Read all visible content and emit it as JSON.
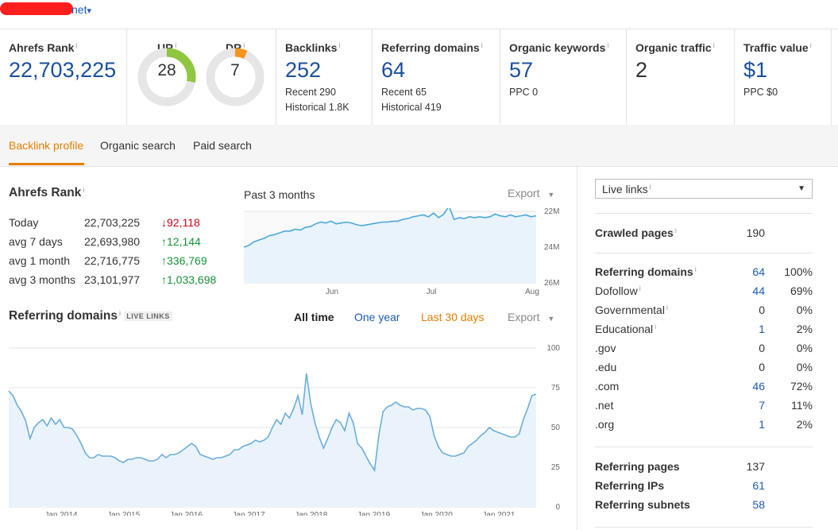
{
  "header": {
    "domain": "net",
    "domain_caret": "▾"
  },
  "metrics": {
    "ahrefs_rank": {
      "label": "Ahrefs Rank",
      "value": "22,703,225"
    },
    "ur": {
      "label": "UR",
      "value": "28",
      "fraction": 0.28,
      "color": "#8dc63f"
    },
    "dr": {
      "label": "DR",
      "value": "7",
      "fraction": 0.07,
      "color": "#f7941d"
    },
    "backlinks": {
      "label": "Backlinks",
      "value": "252",
      "recent": "Recent 290",
      "historical": "Historical 1.8K"
    },
    "referring_domains": {
      "label": "Referring domains",
      "value": "64",
      "recent": "Recent 65",
      "historical": "Historical 419"
    },
    "organic_keywords": {
      "label": "Organic keywords",
      "value": "57",
      "ppc": "PPC 0"
    },
    "organic_traffic": {
      "label": "Organic traffic",
      "value": "2"
    },
    "traffic_value": {
      "label": "Traffic value",
      "value": "$1",
      "ppc": "PPC $0"
    },
    "info_mark": "i"
  },
  "tabs": [
    {
      "label": "Backlink profile",
      "active": true
    },
    {
      "label": "Organic search",
      "active": false
    },
    {
      "label": "Paid search",
      "active": false
    }
  ],
  "rank_section": {
    "title": "Ahrefs Rank",
    "period_label": "Past 3 months",
    "export_label": "Export",
    "rows": [
      {
        "label": "Today",
        "value": "22,703,225",
        "change": "92,118",
        "arrow": "↓",
        "dir": "down"
      },
      {
        "label": "avg 7 days",
        "value": "22,693,980",
        "change": "12,144",
        "arrow": "↑",
        "dir": "up"
      },
      {
        "label": "avg 1 month",
        "value": "22,716,775",
        "change": "336,769",
        "arrow": "↑",
        "dir": "up"
      },
      {
        "label": "avg 3 months",
        "value": "23,101,977",
        "change": "1,033,698",
        "arrow": "↑",
        "dir": "up"
      }
    ]
  },
  "refdomains_section": {
    "title": "Referring domains",
    "badge": "LIVE LINKS",
    "ranges": [
      {
        "label": "All time",
        "state": "selected"
      },
      {
        "label": "One year",
        "state": "link"
      },
      {
        "label": "Last 30 days",
        "state": "highlight"
      }
    ],
    "export_label": "Export"
  },
  "chart_data": [
    {
      "type": "area",
      "title": "Ahrefs Rank",
      "x_ticks": [
        "Jun",
        "Jul",
        "Aug"
      ],
      "y_ticks": [
        "22M",
        "24M",
        "26M"
      ],
      "ylim": [
        26,
        22
      ],
      "y_reversed": true,
      "color": "#4aa8de",
      "series": [
        {
          "values": [
            24.0,
            23.9,
            23.7,
            23.6,
            23.5,
            23.35,
            23.3,
            23.2,
            23.1,
            23.1,
            23.0,
            23.05,
            22.9,
            22.85,
            22.7,
            22.6,
            22.65,
            22.55,
            22.7,
            22.65,
            22.6,
            22.65,
            22.75,
            22.8,
            22.75,
            22.7,
            22.65,
            22.6,
            22.6,
            22.55,
            22.55,
            22.45,
            22.4,
            22.3,
            22.25,
            22.2,
            22.3,
            22.1,
            22.35,
            22.15,
            21.7,
            22.45,
            22.35,
            22.4,
            22.3,
            22.35,
            22.3,
            22.35,
            22.3,
            22.15,
            22.25,
            22.3,
            22.2,
            22.3,
            22.25,
            22.2,
            22.3,
            22.25
          ]
        }
      ]
    },
    {
      "type": "area",
      "title": "Referring domains",
      "x_ticks": [
        "Jan 2014",
        "Jan 2015",
        "Jan 2016",
        "Jan 2017",
        "Jan 2018",
        "Jan 2019",
        "Jan 2020",
        "Jan 2021"
      ],
      "y_ticks": [
        "100",
        "75",
        "50",
        "25",
        "0"
      ],
      "ylim": [
        0,
        100
      ],
      "color": "#6aaedc",
      "series": [
        {
          "values": [
            73,
            70,
            64,
            60,
            54,
            43,
            50,
            53,
            55,
            51,
            56,
            52,
            55,
            50,
            50,
            49,
            45,
            40,
            34,
            31,
            31,
            33,
            32,
            32,
            32,
            31,
            29,
            28,
            30,
            30,
            31,
            31,
            30,
            29,
            29,
            30,
            33,
            31,
            33,
            33,
            34,
            36,
            38,
            40,
            38,
            33,
            32,
            31,
            30,
            31,
            31,
            32,
            33,
            36,
            36,
            38,
            39,
            40,
            42,
            41,
            42,
            44,
            50,
            55,
            52,
            59,
            56,
            62,
            70,
            58,
            84,
            65,
            53,
            44,
            37,
            43,
            50,
            55,
            53,
            48,
            59,
            53,
            40,
            37,
            32,
            27,
            23,
            45,
            60,
            63,
            64,
            66,
            64,
            63,
            63,
            61,
            62,
            62,
            61,
            57,
            45,
            38,
            34,
            33,
            32,
            32,
            33,
            34,
            38,
            40,
            42,
            45,
            47,
            50,
            48,
            47,
            46,
            45,
            44,
            44,
            46,
            55,
            62,
            70,
            71
          ]
        }
      ]
    }
  ],
  "side": {
    "select_label": "Live links",
    "select_caret": "▼",
    "crawled": {
      "label": "Crawled pages",
      "value": "190"
    },
    "rd_rows": [
      {
        "label": "Referring domains",
        "v1": "64",
        "v2": "100%",
        "bold": true,
        "tip": true
      },
      {
        "label": "Dofollow",
        "v1": "44",
        "v2": "69%",
        "tip": true
      },
      {
        "label": "Governmental",
        "v1": "0",
        "v2": "0%",
        "tip": true
      },
      {
        "label": "Educational",
        "v1": "1",
        "v2": "2%",
        "tip": true
      },
      {
        "label": ".gov",
        "v1": "0",
        "v2": "0%"
      },
      {
        "label": ".edu",
        "v1": "0",
        "v2": "0%"
      },
      {
        "label": ".com",
        "v1": "46",
        "v2": "72%"
      },
      {
        "label": ".net",
        "v1": "7",
        "v2": "11%"
      },
      {
        "label": ".org",
        "v1": "1",
        "v2": "2%"
      }
    ],
    "bottom_rows": [
      {
        "label": "Referring pages",
        "value": "137"
      },
      {
        "label": "Referring IPs",
        "value": "61"
      },
      {
        "label": "Referring subnets",
        "value": "58"
      }
    ]
  }
}
